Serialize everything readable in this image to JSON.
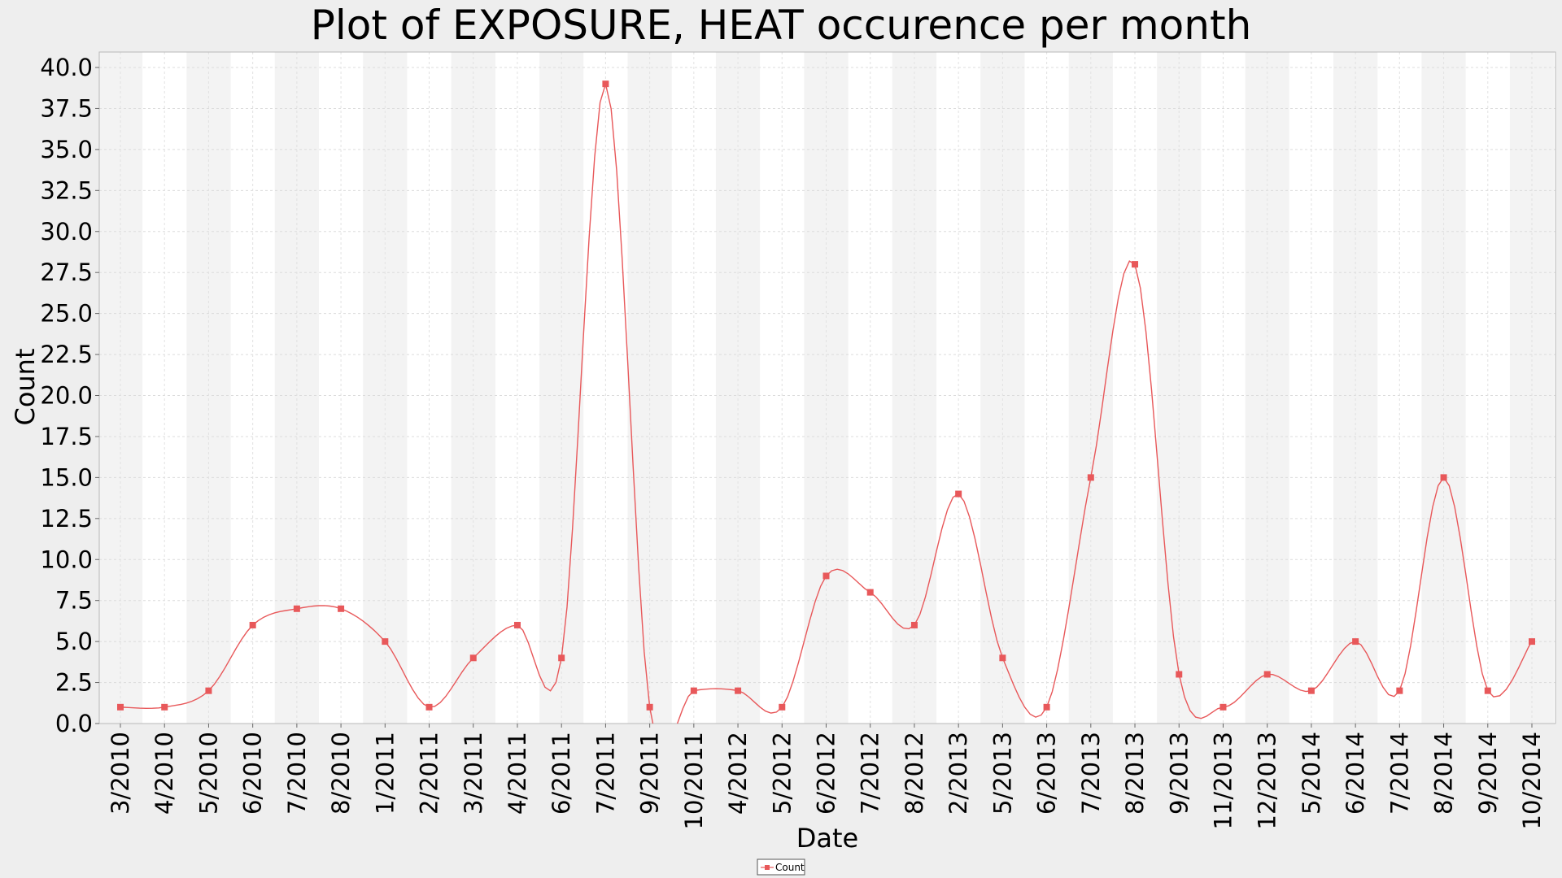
{
  "chart_data": {
    "type": "line",
    "title": "Plot of EXPOSURE, HEAT occurence per month",
    "xlabel": "Date",
    "ylabel": "Count",
    "ylim": [
      0,
      40
    ],
    "y_ticks": [
      "0.0",
      "2.5",
      "5.0",
      "7.5",
      "10.0",
      "12.5",
      "15.0",
      "17.5",
      "20.0",
      "22.5",
      "25.0",
      "27.5",
      "30.0",
      "32.5",
      "35.0",
      "37.5",
      "40.0"
    ],
    "grid": true,
    "legend_position": "bottom-center",
    "categories": [
      "3/2010",
      "4/2010",
      "5/2010",
      "6/2010",
      "7/2010",
      "8/2010",
      "1/2011",
      "2/2011",
      "3/2011",
      "4/2011",
      "6/2011",
      "7/2011",
      "9/2011",
      "10/2011",
      "4/2012",
      "5/2012",
      "6/2012",
      "7/2012",
      "8/2012",
      "2/2013",
      "5/2013",
      "6/2013",
      "7/2013",
      "8/2013",
      "9/2013",
      "11/2013",
      "12/2013",
      "5/2014",
      "6/2014",
      "7/2014",
      "8/2014",
      "9/2014",
      "10/2014"
    ],
    "series": [
      {
        "name": "Count",
        "color": "#e8585a",
        "values": [
          1,
          1,
          2,
          6,
          7,
          7,
          5,
          1,
          4,
          6,
          4,
          39,
          1,
          2,
          2,
          1,
          9,
          8,
          6,
          14,
          4,
          1,
          15,
          28,
          3,
          1,
          3,
          2,
          5,
          2,
          15,
          2,
          5
        ]
      }
    ]
  }
}
